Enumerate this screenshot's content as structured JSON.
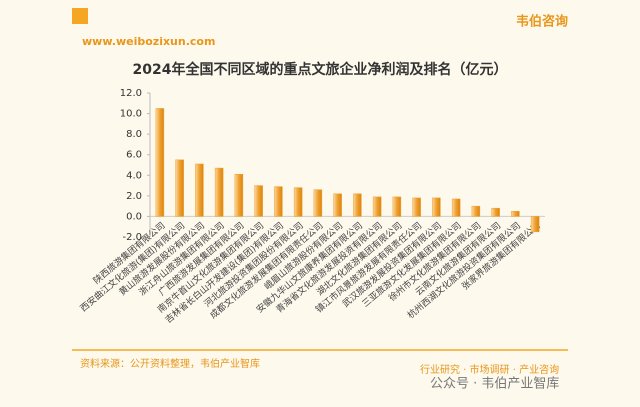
{
  "header": {
    "url": "www.weibozixun.com",
    "logo": "韦伯咨询"
  },
  "chart_data": {
    "type": "bar",
    "title": "2024年全国不同区域的重点文旅企业净利润及排名（亿元）",
    "categories": [
      "陕西旅游集团有限公司",
      "西安曲江文化旅游(集团)有限公司",
      "黄山旅游发展股份有限公司",
      "浙江舟山旅游集团有限公司",
      "广西旅游发展集团有限公司",
      "南京牛首山文化旅游集团有限公司",
      "吉林省长白山开发建设(集团)有限公司",
      "河北旅游投资集团股份有限公司",
      "成都文化旅游发展集团有限责任公司",
      "峨眉山旅游股份有限公司",
      "安徽九华山文旅康养集团有限公司",
      "青海省文化旅游发展投资有限公司",
      "湖北文化旅游集团有限公司",
      "镇江市风景旅游发展有限责任公司",
      "武汉旅游发展投资集团有限公司",
      "三亚旅游文化发展集团有限公司",
      "徐州市文化旅游集团有限公司",
      "云南文化旅游集团有限公司",
      "杭州西湖文化旅游投资集团有限公司",
      "张家界旅游集团有限公司"
    ],
    "values": [
      10.5,
      5.5,
      5.1,
      4.7,
      4.1,
      3.0,
      2.9,
      2.8,
      2.6,
      2.2,
      2.2,
      1.9,
      1.9,
      1.8,
      1.8,
      1.7,
      1.0,
      0.8,
      0.5,
      -1.5
    ],
    "color": "#f0a030",
    "ylim": [
      -2,
      12
    ],
    "yticks": [
      {
        "value": -2,
        "label": "-2.0"
      },
      {
        "value": 0,
        "label": "0.0"
      },
      {
        "value": 2,
        "label": "2.0"
      },
      {
        "value": 4,
        "label": "4.0"
      },
      {
        "value": 6,
        "label": "6.0"
      },
      {
        "value": 8,
        "label": "8.0"
      },
      {
        "value": 10,
        "label": "10.0"
      },
      {
        "value": 12,
        "label": "12.0"
      }
    ]
  },
  "footer": {
    "source": "资料来源：公开资料整理，韦伯产业智库",
    "tagline": "行业研究 · 市场调研 · 产业咨询",
    "watermark": "公众号 · 韦伯产业智库"
  }
}
